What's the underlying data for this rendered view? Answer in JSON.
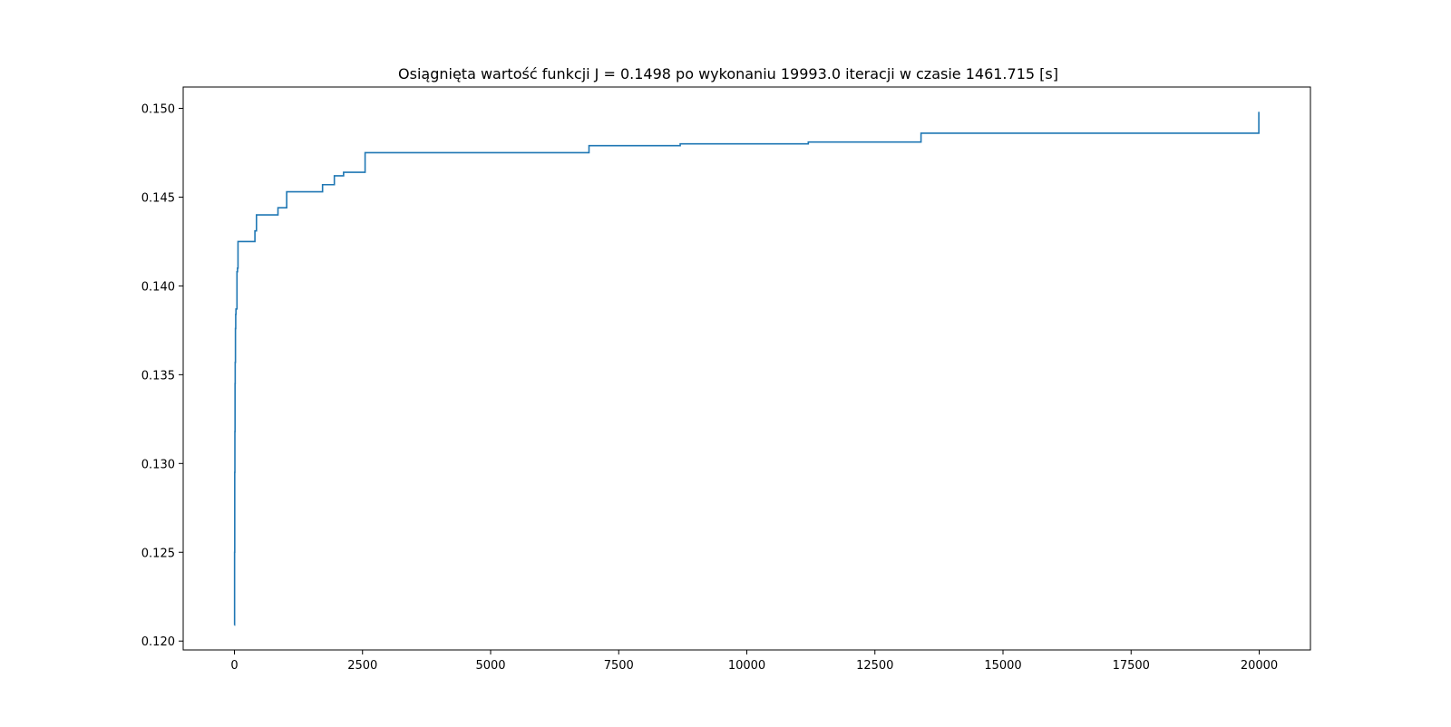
{
  "chart_data": {
    "type": "line",
    "title": "Osiągnięta wartość funkcji J = 0.1498 po wykonaniu 19993.0 iteracji w czasie 1461.715 [s]",
    "xlabel": "",
    "ylabel": "",
    "xlim": [
      -1000,
      21000
    ],
    "ylim": [
      0.1195,
      0.1512
    ],
    "x_ticks": [
      0,
      2500,
      5000,
      7500,
      10000,
      12500,
      15000,
      17500,
      20000
    ],
    "x_tick_labels": [
      "0",
      "2500",
      "5000",
      "7500",
      "10000",
      "12500",
      "15000",
      "17500",
      "20000"
    ],
    "y_ticks": [
      0.12,
      0.125,
      0.13,
      0.135,
      0.14,
      0.145,
      0.15
    ],
    "y_tick_labels": [
      "0.120",
      "0.125",
      "0.130",
      "0.135",
      "0.140",
      "0.145",
      "0.150"
    ],
    "grid": false,
    "step": true,
    "series": [
      {
        "color": "#1f77b4",
        "x": [
          0,
          3,
          6,
          9,
          12,
          15,
          20,
          25,
          30,
          40,
          50,
          60,
          70,
          80,
          100,
          400,
          430,
          450,
          850,
          1020,
          1720,
          1950,
          2130,
          2550,
          6920,
          8700,
          11200,
          13400,
          19993
        ],
        "y": [
          0.1209,
          0.125,
          0.1295,
          0.1318,
          0.1345,
          0.1357,
          0.1376,
          0.1384,
          0.1387,
          0.1387,
          0.1408,
          0.141,
          0.1425,
          0.1425,
          0.1425,
          0.1431,
          0.144,
          0.144,
          0.1444,
          0.1453,
          0.1457,
          0.1462,
          0.1464,
          0.1475,
          0.1479,
          0.148,
          0.1481,
          0.1486,
          0.1498
        ]
      }
    ]
  }
}
